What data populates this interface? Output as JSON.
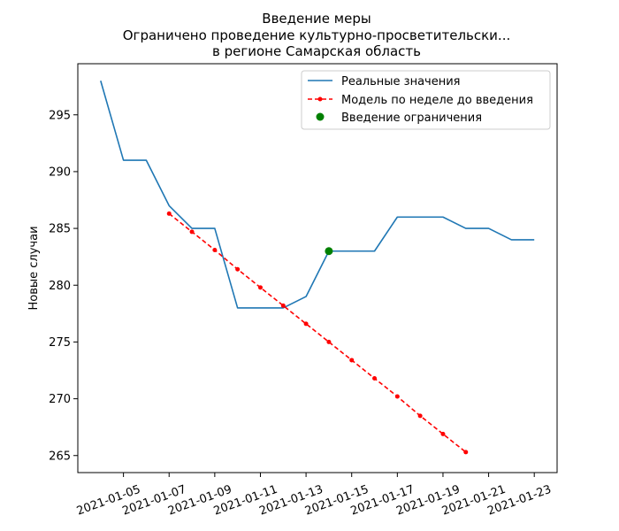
{
  "chart_data": {
    "type": "line",
    "title_lines": [
      "Введение меры",
      "Ограничено проведение культурно-просветительски...",
      "в регионе Самарская область"
    ],
    "xlabel": "",
    "ylabel": "Новые случаи",
    "x_tick_labels": [
      "2021-01-05",
      "2021-01-07",
      "2021-01-09",
      "2021-01-11",
      "2021-01-13",
      "2021-01-15",
      "2021-01-17",
      "2021-01-19",
      "2021-01-21",
      "2021-01-23"
    ],
    "y_tick_labels": [
      "265",
      "270",
      "275",
      "280",
      "285",
      "290",
      "295"
    ],
    "xlim": [
      "2021-01-03",
      "2021-01-24"
    ],
    "ylim": [
      263.5,
      299.5
    ],
    "grid": false,
    "legend_position": "top-right",
    "series": [
      {
        "name": "Реальные значения",
        "style": "solid",
        "color": "#1f77b4",
        "x": [
          "2021-01-04",
          "2021-01-05",
          "2021-01-06",
          "2021-01-07",
          "2021-01-08",
          "2021-01-09",
          "2021-01-10",
          "2021-01-11",
          "2021-01-12",
          "2021-01-13",
          "2021-01-14",
          "2021-01-15",
          "2021-01-16",
          "2021-01-17",
          "2021-01-18",
          "2021-01-19",
          "2021-01-20",
          "2021-01-21",
          "2021-01-22",
          "2021-01-23"
        ],
        "y": [
          298,
          291,
          291,
          287,
          285,
          285,
          278,
          278,
          278,
          279,
          283,
          283,
          283,
          286,
          286,
          286,
          285,
          285,
          284,
          284
        ]
      },
      {
        "name": "Модель по неделе до введения",
        "style": "dashed-dots",
        "color": "#ff0000",
        "x": [
          "2021-01-07",
          "2021-01-08",
          "2021-01-09",
          "2021-01-10",
          "2021-01-11",
          "2021-01-12",
          "2021-01-13",
          "2021-01-14",
          "2021-01-15",
          "2021-01-16",
          "2021-01-17",
          "2021-01-18",
          "2021-01-19",
          "2021-01-20"
        ],
        "y": [
          286.3,
          284.7,
          283.1,
          281.4,
          279.8,
          278.2,
          276.6,
          275.0,
          273.4,
          271.8,
          270.2,
          268.5,
          266.9,
          265.3
        ]
      },
      {
        "name": "Введение ограничения",
        "style": "marker",
        "color": "#008000",
        "x": [
          "2021-01-14"
        ],
        "y": [
          283
        ]
      }
    ]
  }
}
